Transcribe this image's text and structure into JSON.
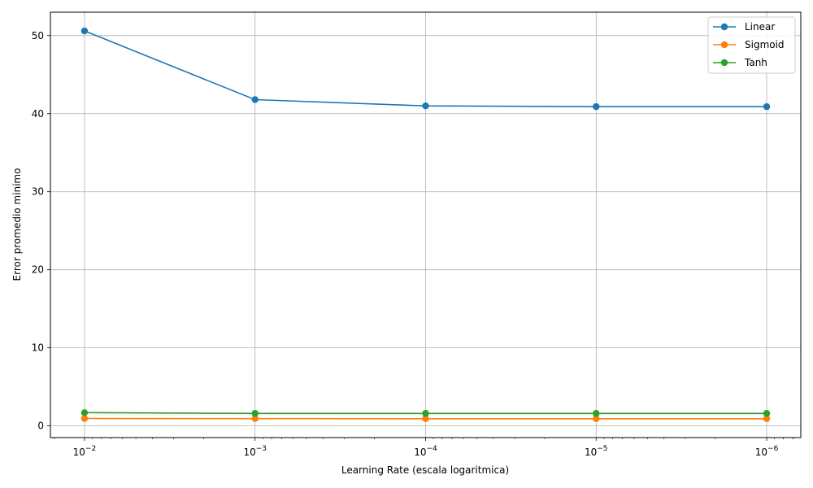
{
  "chart_data": {
    "type": "line",
    "title": "",
    "xlabel": "Learning Rate (escala logaritmica)",
    "ylabel": "Error promedio minimo",
    "x_scale": "log",
    "x_inverted": true,
    "x": [
      0.01,
      0.001,
      0.0001,
      1e-05,
      1e-06
    ],
    "x_tick_labels": [
      {
        "base": "10",
        "exp": "−2"
      },
      {
        "base": "10",
        "exp": "−3"
      },
      {
        "base": "10",
        "exp": "−4"
      },
      {
        "base": "10",
        "exp": "−5"
      },
      {
        "base": "10",
        "exp": "−6"
      }
    ],
    "y_ticks": [
      0,
      10,
      20,
      30,
      40,
      50
    ],
    "ylim": [
      -1.5,
      53
    ],
    "grid": true,
    "legend_position": "top-right",
    "series": [
      {
        "name": "Linear",
        "color": "#1f77b4",
        "values": [
          50.6,
          41.8,
          41.0,
          40.9,
          40.9
        ]
      },
      {
        "name": "Sigmoid",
        "color": "#ff7f0e",
        "values": [
          0.95,
          0.93,
          0.92,
          0.92,
          0.92
        ]
      },
      {
        "name": "Tanh",
        "color": "#2ca02c",
        "values": [
          1.7,
          1.6,
          1.6,
          1.6,
          1.6
        ]
      }
    ]
  }
}
